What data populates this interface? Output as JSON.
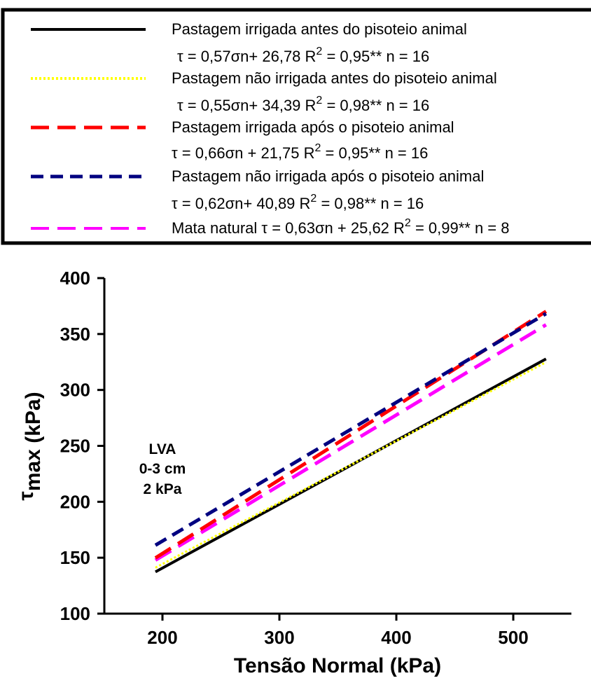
{
  "chart_data": {
    "type": "line",
    "xlabel": "Tensão Normal (kPa)",
    "ylabel_symbol": "τ",
    "ylabel_sub": "max (kPa)",
    "xlim": [
      200,
      550
    ],
    "ylim": [
      100,
      400
    ],
    "x_ticks": [
      "200",
      "300",
      "400",
      "500"
    ],
    "y_ticks": [
      "100",
      "150",
      "200",
      "250",
      "300",
      "350",
      "400"
    ],
    "grid": false,
    "legend_position": "top",
    "annotation": [
      "LVA",
      "0-3 cm",
      "2 kPa"
    ],
    "series": [
      {
        "name": "Pastagem irrigada antes do pisoteio animal",
        "equation": {
          "lhs": "τ = 0,57σn+ 26,78  R",
          "sup": "2",
          "rhs": " = 0,95**  n = 16"
        },
        "slope": 0.57,
        "intercept": 26.78,
        "x": [
          194,
          528
        ],
        "y": [
          137.36,
          327.74
        ],
        "color": "#000000",
        "style": "solid"
      },
      {
        "name": "Pastagem não irrigada antes do pisoteio animal",
        "equation": {
          "lhs": "τ = 0,55σn+ 34,39  R",
          "sup": "2",
          "rhs": " = 0,98**  n = 16"
        },
        "slope": 0.55,
        "intercept": 34.39,
        "x": [
          194,
          528
        ],
        "y": [
          141.09,
          324.79
        ],
        "color": "#ffff00",
        "style": "dotted"
      },
      {
        "name": "Pastagem irrigada após o pisoteio animal",
        "equation": {
          "lhs": "τ = 0,66σn + 21,75  R",
          "sup": "2",
          "rhs": " = 0,95**  n = 16"
        },
        "slope": 0.66,
        "intercept": 21.75,
        "x": [
          194,
          528
        ],
        "y": [
          149.79,
          370.23
        ],
        "color": "#ff0000",
        "style": "long-dash"
      },
      {
        "name": "Pastagem não irrigada após o pisoteio animal",
        "equation": {
          "lhs": "τ = 0,62σn+ 40,89  R",
          "sup": "2",
          "rhs": " = 0,98**  n = 16"
        },
        "slope": 0.62,
        "intercept": 40.89,
        "x": [
          194,
          528
        ],
        "y": [
          161.17,
          368.25
        ],
        "color": "#000080",
        "style": "dash"
      },
      {
        "name": "",
        "equation": {
          "lhs": "Mata natural τ = 0,63σn + 25,62  R",
          "sup": "2",
          "rhs": " = 0,99**  n = 8"
        },
        "slope": 0.63,
        "intercept": 25.62,
        "x": [
          194,
          528
        ],
        "y": [
          147.84,
          358.26
        ],
        "color": "#ff00ff",
        "style": "long-dash"
      }
    ]
  }
}
